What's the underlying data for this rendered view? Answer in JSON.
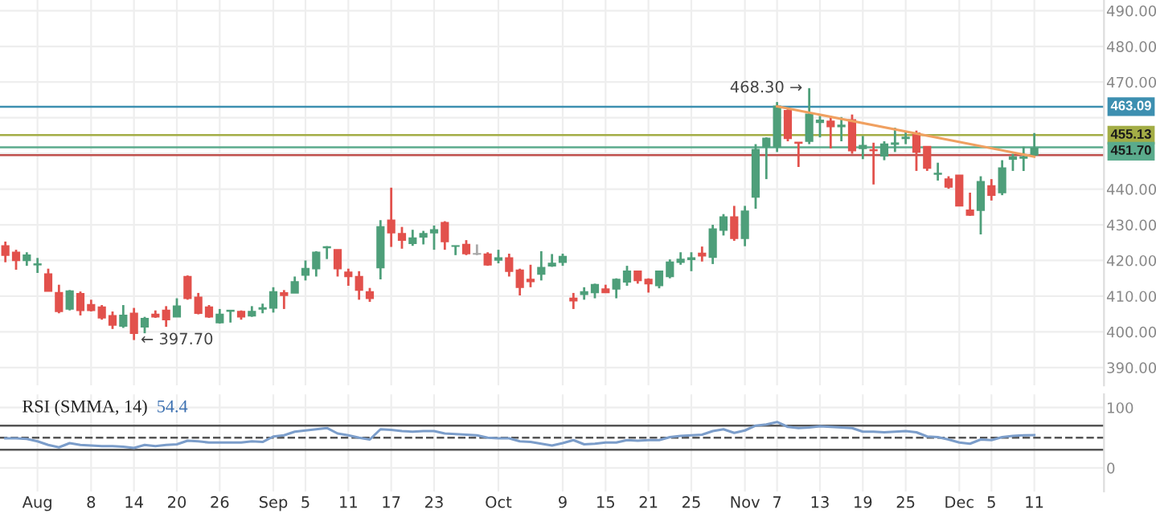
{
  "chart_data": [
    {
      "type": "candlestick",
      "categories": [
        null,
        null,
        null,
        null,
        null,
        null,
        null,
        null,
        null,
        null,
        null,
        null,
        null,
        null,
        null,
        null,
        null,
        null,
        null,
        null,
        null,
        null,
        null,
        null,
        null,
        null,
        null,
        null,
        null,
        null,
        null,
        null,
        null,
        null,
        null,
        null,
        null,
        null,
        null,
        null,
        null,
        null,
        null,
        null,
        null,
        null,
        null,
        null,
        null,
        null,
        null,
        null,
        null,
        null,
        null,
        null,
        null,
        null,
        null,
        null,
        null,
        null,
        null,
        null,
        null,
        null,
        null,
        null,
        null,
        null,
        null,
        null,
        null,
        null,
        null,
        null,
        null,
        null,
        null,
        null,
        null,
        null,
        null,
        null,
        null,
        null,
        null,
        null,
        null,
        null,
        null,
        null,
        null,
        null,
        null,
        null,
        null
      ],
      "ohlc": [
        [
          424.1,
          425.3,
          419.5,
          421.5
        ],
        [
          422.3,
          423.0,
          417.4,
          420.0
        ],
        [
          420.0,
          422.3,
          418.5,
          421.5
        ],
        [
          418.8,
          420.7,
          416.5,
          419.0
        ],
        [
          416.2,
          417.7,
          411.4,
          411.4
        ],
        [
          411.0,
          413.2,
          405.2,
          405.7
        ],
        [
          406.4,
          411.7,
          406.0,
          411.4
        ],
        [
          410.7,
          411.3,
          404.6,
          406.0
        ],
        [
          407.6,
          409.0,
          405.7,
          406.0
        ],
        [
          406.9,
          407.5,
          403.4,
          403.9
        ],
        [
          404.5,
          405.7,
          400.8,
          401.9
        ],
        [
          401.6,
          407.5,
          401.1,
          404.6
        ],
        [
          405.2,
          406.7,
          397.7,
          399.6
        ],
        [
          401.4,
          404.2,
          399.6,
          403.7
        ],
        [
          404.9,
          406.0,
          403.9,
          404.2
        ],
        [
          406.0,
          407.2,
          401.4,
          403.4
        ],
        [
          404.2,
          409.4,
          404.2,
          407.2
        ],
        [
          415.5,
          415.8,
          409.0,
          409.4
        ],
        [
          409.7,
          410.9,
          404.9,
          405.2
        ],
        [
          406.9,
          407.5,
          403.9,
          404.2
        ],
        [
          402.6,
          406.4,
          402.3,
          404.9
        ],
        [
          405.8,
          406.0,
          402.6,
          406.0
        ],
        [
          405.7,
          406.0,
          403.4,
          404.2
        ],
        [
          404.5,
          407.2,
          404.2,
          405.7
        ],
        [
          406.4,
          407.9,
          405.2,
          406.7
        ],
        [
          406.7,
          412.5,
          405.4,
          411.2
        ],
        [
          410.9,
          411.7,
          406.4,
          410.2
        ],
        [
          410.9,
          415.5,
          410.9,
          414.0
        ],
        [
          415.9,
          420.0,
          414.4,
          417.7
        ],
        [
          417.7,
          422.6,
          415.5,
          422.3
        ],
        [
          423.6,
          424.0,
          420.4,
          423.8
        ],
        [
          423.0,
          423.0,
          415.5,
          417.7
        ],
        [
          416.7,
          417.7,
          412.9,
          415.5
        ],
        [
          415.5,
          417.0,
          409.0,
          411.7
        ],
        [
          411.2,
          412.3,
          408.4,
          409.4
        ],
        [
          418.0,
          431.3,
          414.7,
          429.4
        ],
        [
          431.3,
          440.4,
          423.8,
          427.8
        ],
        [
          427.5,
          429.4,
          423.3,
          425.7
        ],
        [
          424.8,
          428.6,
          424.1,
          426.3
        ],
        [
          426.6,
          428.3,
          424.5,
          427.5
        ],
        [
          427.8,
          429.8,
          423.0,
          428.6
        ],
        [
          430.6,
          431.0,
          423.0,
          425.3
        ],
        [
          424.0,
          424.1,
          421.5,
          424.1
        ],
        [
          424.5,
          425.7,
          421.5,
          421.9
        ],
        [
          421.8,
          424.5,
          421.5,
          421.9
        ],
        [
          421.8,
          422.3,
          418.5,
          418.8
        ],
        [
          420.1,
          423.0,
          419.2,
          420.7
        ],
        [
          420.7,
          421.9,
          415.5,
          417.0
        ],
        [
          417.3,
          417.7,
          410.2,
          412.5
        ],
        [
          414.7,
          418.8,
          412.5,
          414.1
        ],
        [
          416.2,
          422.6,
          414.4,
          418.0
        ],
        [
          418.5,
          421.8,
          418.2,
          419.2
        ],
        [
          419.5,
          421.9,
          418.5,
          421.1
        ],
        [
          409.4,
          410.9,
          406.4,
          408.7
        ],
        [
          410.5,
          412.5,
          409.0,
          411.2
        ],
        [
          411.0,
          413.5,
          409.4,
          413.2
        ],
        [
          412.0,
          413.2,
          410.9,
          411.0
        ],
        [
          412.0,
          415.0,
          409.4,
          414.7
        ],
        [
          414.0,
          418.5,
          412.9,
          417.0
        ],
        [
          417.0,
          417.0,
          413.5,
          414.4
        ],
        [
          414.7,
          415.0,
          411.0,
          413.5
        ],
        [
          413.0,
          417.0,
          412.2,
          417.0
        ],
        [
          415.5,
          420.3,
          415.0,
          419.5
        ],
        [
          419.5,
          422.3,
          418.8,
          420.3
        ],
        [
          420.3,
          422.3,
          417.0,
          420.7
        ],
        [
          422.0,
          423.9,
          419.7,
          421.3
        ],
        [
          420.9,
          430.0,
          419.0,
          428.8
        ],
        [
          428.5,
          433.0,
          427.0,
          432.2
        ],
        [
          432.2,
          435.3,
          425.5,
          426.2
        ],
        [
          426.2,
          435.3,
          424.0,
          433.8
        ],
        [
          437.8,
          452.6,
          434.5,
          451.1
        ],
        [
          451.9,
          454.5,
          442.8,
          454.2
        ],
        [
          451.9,
          464.4,
          450.4,
          463.2
        ],
        [
          462.0,
          462.5,
          453.4,
          454.2
        ],
        [
          453.1,
          453.1,
          446.2,
          452.9
        ],
        [
          453.4,
          468.3,
          452.6,
          461.0
        ],
        [
          458.7,
          460.5,
          454.5,
          459.3
        ],
        [
          459.0,
          460.5,
          451.4,
          457.5
        ],
        [
          457.5,
          460.2,
          453.4,
          457.9
        ],
        [
          459.4,
          460.9,
          449.9,
          450.8
        ],
        [
          451.4,
          454.9,
          448.4,
          452.2
        ],
        [
          451.0,
          453.0,
          441.3,
          450.8
        ],
        [
          449.3,
          453.4,
          448.1,
          452.6
        ],
        [
          452.6,
          457.2,
          450.4,
          452.9
        ],
        [
          454.2,
          456.0,
          452.6,
          454.5
        ],
        [
          455.7,
          456.4,
          445.1,
          450.4
        ],
        [
          451.9,
          451.9,
          445.1,
          445.9
        ],
        [
          444.2,
          447.4,
          442.4,
          444.4
        ],
        [
          442.8,
          443.6,
          440.1,
          440.6
        ],
        [
          443.9,
          443.9,
          435.3,
          435.3
        ],
        [
          434.1,
          439.0,
          432.5,
          432.7
        ],
        [
          434.1,
          443.6,
          427.3,
          442.1
        ],
        [
          440.9,
          442.8,
          436.8,
          438.3
        ],
        [
          439.0,
          448.1,
          438.3,
          445.9
        ],
        [
          448.4,
          449.9,
          445.1,
          449.0
        ],
        [
          448.7,
          451.9,
          445.1,
          449.0
        ],
        [
          449.6,
          455.7,
          449.3,
          451.4
        ]
      ],
      "colors": [
        "#e2514c",
        "#e2514c",
        "#4e9f7a",
        "#4e9f7a",
        "#e2514c",
        "#e2514c",
        "#4e9f7a",
        "#e2514c",
        "#e2514c",
        "#e2514c",
        "#e2514c",
        "#4e9f7a",
        "#e2514c",
        "#4e9f7a",
        "#e2514c",
        "#e2514c",
        "#4e9f7a",
        "#e2514c",
        "#e2514c",
        "#e2514c",
        "#4e9f7a",
        "#4e9f7a",
        "#e2514c",
        "#4e9f7a",
        "#4e9f7a",
        "#4e9f7a",
        "#e2514c",
        "#4e9f7a",
        "#4e9f7a",
        "#4e9f7a",
        "#4e9f7a",
        "#e2514c",
        "#e2514c",
        "#e2514c",
        "#e2514c",
        "#4e9f7a",
        "#e2514c",
        "#e2514c",
        "#4e9f7a",
        "#4e9f7a",
        "#4e9f7a",
        "#e2514c",
        "#4e9f7a",
        "#e2514c",
        "#a8a8a8",
        "#e2514c",
        "#4e9f7a",
        "#e2514c",
        "#e2514c",
        "#e2514c",
        "#4e9f7a",
        "#4e9f7a",
        "#4e9f7a",
        "#e2514c",
        "#4e9f7a",
        "#4e9f7a",
        "#e2514c",
        "#4e9f7a",
        "#4e9f7a",
        "#e2514c",
        "#e2514c",
        "#4e9f7a",
        "#4e9f7a",
        "#4e9f7a",
        "#4e9f7a",
        "#e2514c",
        "#4e9f7a",
        "#4e9f7a",
        "#e2514c",
        "#4e9f7a",
        "#4e9f7a",
        "#4e9f7a",
        "#4e9f7a",
        "#e2514c",
        "#e2514c",
        "#4e9f7a",
        "#4e9f7a",
        "#e2514c",
        "#4e9f7a",
        "#e2514c",
        "#4e9f7a",
        "#e2514c",
        "#4e9f7a",
        "#4e9f7a",
        "#4e9f7a",
        "#e2514c",
        "#e2514c",
        "#4e9f7a",
        "#e2514c",
        "#e2514c",
        "#e2514c",
        "#4e9f7a",
        "#e2514c",
        "#4e9f7a",
        "#4e9f7a",
        "#4e9f7a",
        "#4e9f7a"
      ],
      "series": [
        {
          "type": "line",
          "color": "#f0a060",
          "values": [
            null,
            null,
            null,
            null,
            null,
            null,
            null,
            null,
            null,
            null,
            null,
            null,
            null,
            null,
            null,
            null,
            null,
            null,
            null,
            null,
            null,
            null,
            null,
            null,
            null,
            null,
            null,
            null,
            null,
            null,
            null,
            null,
            null,
            null,
            null,
            null,
            null,
            null,
            null,
            null,
            null,
            null,
            null,
            null,
            null,
            null,
            null,
            null,
            null,
            null,
            null,
            null,
            null,
            null,
            null,
            null,
            null,
            null,
            null,
            null,
            null,
            null,
            null,
            null,
            null,
            null,
            null,
            null,
            null,
            null,
            null,
            null,
            463.2,
            null,
            null,
            null,
            null,
            null,
            null,
            null,
            null,
            null,
            null,
            null,
            null,
            null,
            null,
            null,
            null,
            null,
            null,
            null,
            null,
            null,
            null,
            null,
            449.1
          ]
        }
      ],
      "ylim": [
        385,
        493
      ],
      "yticks": [
        {
          "value": 390,
          "label": "390.00"
        },
        {
          "value": 400,
          "label": "400.00"
        },
        {
          "value": 410,
          "label": "410.00"
        },
        {
          "value": 420,
          "label": "420.00"
        },
        {
          "value": 430,
          "label": "430.00"
        },
        {
          "value": 440,
          "label": "440.00"
        },
        {
          "value": 450,
          "label": null
        },
        {
          "value": 460,
          "label": null
        },
        {
          "value": 470,
          "label": "470.00"
        },
        {
          "value": 480,
          "label": "480.00"
        },
        {
          "value": 490,
          "label": "490.00"
        }
      ],
      "grid": true,
      "tick_labels": "y",
      "ref_lines": [
        {
          "axis": "y",
          "value": 449.5,
          "label": null,
          "color": "#c0504d"
        },
        {
          "axis": "y",
          "value": 455.13,
          "label": "455.13",
          "color": "#a3ad46"
        },
        {
          "axis": "y",
          "value": 463.09,
          "label": "463.09",
          "color": "#3d8fb0"
        },
        {
          "axis": "y",
          "value": 451.7,
          "label": "451.70",
          "color": "#5aab8c"
        }
      ],
      "annotations": [
        "468.30 →",
        "← 397.70"
      ]
    },
    {
      "type": "line",
      "title": "RSI (SMMA, 14)",
      "categories": [
        null,
        null,
        null,
        "Aug",
        null,
        null,
        null,
        null,
        "8",
        null,
        null,
        null,
        "14",
        null,
        null,
        null,
        "20",
        null,
        null,
        null,
        "26",
        null,
        null,
        null,
        null,
        "Sep",
        null,
        null,
        "5",
        null,
        null,
        null,
        "11",
        null,
        null,
        null,
        "17",
        null,
        null,
        null,
        "23",
        null,
        null,
        null,
        null,
        null,
        "Oct",
        null,
        null,
        null,
        null,
        null,
        "9",
        null,
        null,
        null,
        "15",
        null,
        null,
        null,
        "21",
        null,
        null,
        null,
        "25",
        null,
        null,
        null,
        null,
        "Nov",
        null,
        null,
        "7",
        null,
        null,
        null,
        "13",
        null,
        null,
        null,
        "19",
        null,
        null,
        null,
        "25",
        null,
        null,
        null,
        null,
        "Dec",
        null,
        null,
        "5",
        null,
        null,
        null,
        "11"
      ],
      "series": [
        {
          "color": "#7b9dca",
          "values": [
            49,
            49,
            48,
            44,
            38,
            34,
            41,
            38,
            37,
            36,
            36,
            35,
            33,
            38,
            36,
            38,
            39,
            45,
            44,
            42,
            42,
            42,
            42,
            44,
            43,
            52,
            54,
            60,
            62,
            64,
            66,
            57,
            54,
            50,
            47,
            64,
            63,
            61,
            60,
            61,
            61,
            57,
            56,
            55,
            54,
            50,
            49,
            49,
            44,
            43,
            40,
            37,
            41,
            46,
            39,
            40,
            42,
            42,
            46,
            45,
            46,
            46,
            51,
            53,
            54,
            55,
            61,
            64,
            58,
            62,
            70,
            72,
            76,
            68,
            66,
            67,
            69,
            68,
            67,
            66,
            60,
            60,
            59,
            60,
            61,
            59,
            52,
            51,
            47,
            42,
            40,
            47,
            46,
            51,
            53,
            54,
            54.4
          ]
        }
      ],
      "ylim": [
        -39,
        122
      ],
      "yticks": [
        0,
        100
      ],
      "grid": true,
      "ref_lines": [
        {
          "axis": "y",
          "value": 70,
          "color": "#555555",
          "line_style": "solid"
        },
        {
          "axis": "y",
          "value": 50,
          "color": "#555555",
          "line_style": "dashed"
        },
        {
          "axis": "y",
          "value": 30,
          "color": "#555555",
          "line_style": "solid"
        }
      ],
      "annotations": [
        "54.4"
      ]
    }
  ]
}
